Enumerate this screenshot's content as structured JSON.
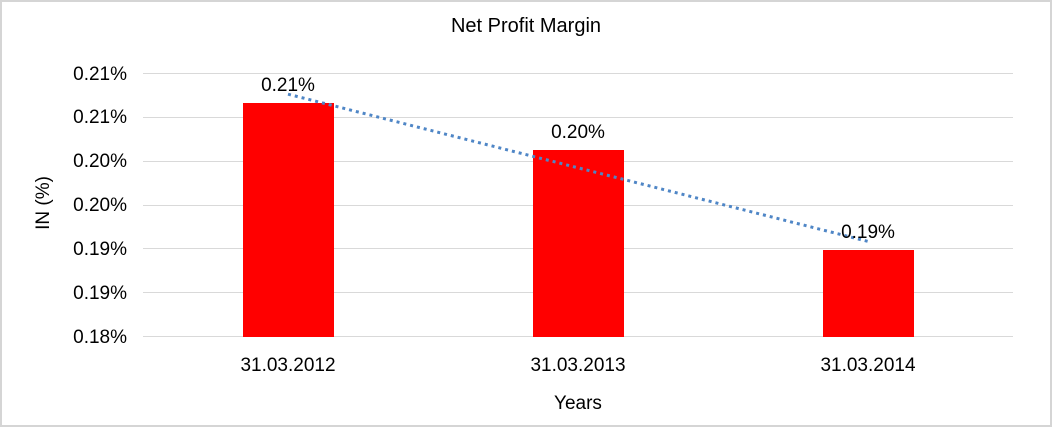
{
  "chart_data": {
    "type": "bar",
    "title": "Net Profit Margin",
    "xlabel": "Years",
    "ylabel": "IN (%)",
    "categories": [
      "31.03.2012",
      "31.03.2013",
      "31.03.2014"
    ],
    "values": [
      0.2067,
      0.2013,
      0.1899
    ],
    "data_labels": [
      "0.21%",
      "0.20%",
      "0.19%"
    ],
    "ylim": [
      0.18,
      0.21
    ],
    "yticks": [
      {
        "value": 0.21,
        "label": "0.21%"
      },
      {
        "value": 0.205,
        "label": "0.21%"
      },
      {
        "value": 0.2,
        "label": "0.20%"
      },
      {
        "value": 0.195,
        "label": "0.20%"
      },
      {
        "value": 0.19,
        "label": "0.19%"
      },
      {
        "value": 0.185,
        "label": "0.19%"
      },
      {
        "value": 0.18,
        "label": "0.18%"
      }
    ],
    "grid": true,
    "legend": false,
    "bar_color": "#ff0000",
    "trendline": {
      "type": "linear",
      "style": "dotted",
      "color": "#4f86c6",
      "start_value": 0.2077,
      "end_value": 0.1909
    }
  }
}
